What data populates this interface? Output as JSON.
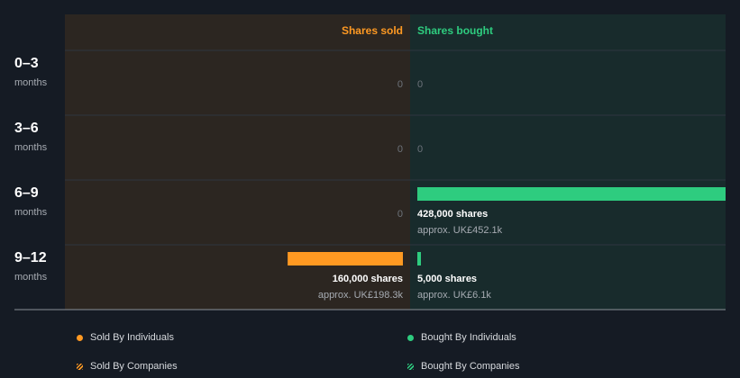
{
  "colors": {
    "background": "#151b24",
    "sold_panel": "#2c2621",
    "bought_panel": "#182b2c",
    "sold": "#ff9922",
    "bought": "#2ecc7f",
    "divider": "#2e3540"
  },
  "chart_data": {
    "type": "bar",
    "orientation": "horizontal-diverging",
    "columns": {
      "sold": "Shares sold",
      "bought": "Shares bought"
    },
    "max_shares": 428000,
    "rows": [
      {
        "range": "0–3",
        "unit": "months",
        "sold": {
          "shares": 0,
          "value_label": "0"
        },
        "bought": {
          "shares": 0,
          "value_label": "0"
        }
      },
      {
        "range": "3–6",
        "unit": "months",
        "sold": {
          "shares": 0,
          "value_label": "0"
        },
        "bought": {
          "shares": 0,
          "value_label": "0"
        }
      },
      {
        "range": "6–9",
        "unit": "months",
        "sold": {
          "shares": 0,
          "value_label": "0"
        },
        "bought": {
          "shares": 428000,
          "shares_label": "428,000 shares",
          "approx_label": "approx. UK£452.1k"
        }
      },
      {
        "range": "9–12",
        "unit": "months",
        "sold": {
          "shares": 160000,
          "shares_label": "160,000 shares",
          "approx_label": "approx. UK£198.3k"
        },
        "bought": {
          "shares": 5000,
          "shares_label": "5,000 shares",
          "approx_label": "approx. UK£6.1k"
        }
      }
    ],
    "legend": [
      {
        "label": "Sold By Individuals",
        "marker": "dot",
        "color": "#ff9922"
      },
      {
        "label": "Bought By Individuals",
        "marker": "dot",
        "color": "#2ecc7f"
      },
      {
        "label": "Sold By Companies",
        "marker": "hatch",
        "color": "#ff9922"
      },
      {
        "label": "Bought By Companies",
        "marker": "hatch",
        "color": "#2ecc7f"
      }
    ]
  }
}
